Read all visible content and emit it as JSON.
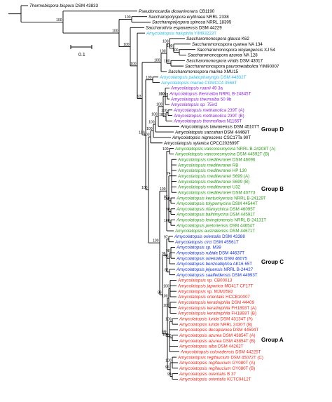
{
  "tree": {
    "colors": {
      "black": "#000000",
      "cyan": "#31b7e5",
      "purple": "#8a1fd0",
      "green": "#2c9a1a",
      "blue": "#1630c9",
      "red": "#e8281f"
    },
    "scale_bar": {
      "label": "0.1"
    },
    "groups": [
      {
        "id": "D",
        "label": "Group D"
      },
      {
        "id": "B",
        "label": "Group B"
      },
      {
        "id": "C",
        "label": "Group C"
      },
      {
        "id": "A",
        "label": "Group A"
      }
    ],
    "leaves": [
      {
        "genus": "Thermobispora bispora",
        "strain": "DSM 43833",
        "color": "black"
      },
      {
        "genus": "Pseudonocardia dioxanivorans",
        "strain": "CB1190",
        "color": "black"
      },
      {
        "genus": "Saccharopolyspora erythraea",
        "strain": "NRRL 2338",
        "color": "black"
      },
      {
        "genus": "Saccharopolyspora spinosa",
        "strain": "NRRL 18395",
        "color": "black"
      },
      {
        "genus": "Saccharothrix espanaensis",
        "strain": "DSM 44229",
        "color": "black"
      },
      {
        "genus": "Amycolatopsis halophila",
        "strain": "YIM93223T",
        "color": "cyan"
      },
      {
        "genus": "Saccharomonospora glauca",
        "strain": "K62",
        "color": "black"
      },
      {
        "genus": "Saccharomonospora cyanea",
        "strain": "NA 134",
        "color": "black"
      },
      {
        "genus": "Saccharomonospora xinjiangensis",
        "strain": "XJ 54",
        "color": "black"
      },
      {
        "genus": "Saccharomonospora azurea",
        "strain": "NA 128",
        "color": "black"
      },
      {
        "genus": "Saccharomonospora viridis",
        "strain": "DSM 43017",
        "color": "black"
      },
      {
        "genus": "Saccharomonospora paurometabolica",
        "strain": "YIM90007",
        "color": "black"
      },
      {
        "genus": "Saccharomonospora marina",
        "strain": "XMU15",
        "color": "black"
      },
      {
        "genus": "Amycolatopsis palatopharyngis",
        "strain": "DSM 44832T",
        "color": "cyan"
      },
      {
        "genus": "Amycolatopsis mairae",
        "strain": "CGMCC4 3568T",
        "color": "cyan"
      },
      {
        "genus": "Amycolatopsis ruanii",
        "strain": "49 3a",
        "color": "purple"
      },
      {
        "genus": "Amycolatopsis thermalba",
        "strain": "NRRL B-24845T",
        "color": "purple"
      },
      {
        "genus": "Amycolatopsis thermalba",
        "strain": "50 9b",
        "color": "purple"
      },
      {
        "genus": "Amycolatopsis sp.",
        "strain": "75iv2",
        "color": "purple"
      },
      {
        "genus": "Amycolatopsis methanolica",
        "strain": "239T (A)",
        "color": "purple"
      },
      {
        "genus": "Amycolatopsis methanolica",
        "strain": "239T (B)",
        "color": "purple"
      },
      {
        "genus": "Amycolatopsis thermoflava",
        "strain": "N1165T",
        "color": "purple"
      },
      {
        "genus": "Amycolatopsis taiwanensis",
        "strain": "DSM 45107T",
        "color": "black"
      },
      {
        "genus": "Amycolatopsis saccahari",
        "strain": "DSM 44468T",
        "color": "black"
      },
      {
        "genus": "Amycolatopsis nigrescens",
        "strain": "CSC17Ta 90T",
        "color": "black"
      },
      {
        "genus": "Amycolatopsis xylanica",
        "strain": "CPCC202699T",
        "color": "black"
      },
      {
        "genus": "Amycolatopsis vancoresmycina",
        "strain": "NRRL B-24208T (A)",
        "color": "green"
      },
      {
        "genus": "Amycolatopsis vancoresmycina",
        "strain": "DSM 44592T (B)",
        "color": "green"
      },
      {
        "genus": "Amycolatopsis mediterranei",
        "strain": "DSM 46096",
        "color": "green"
      },
      {
        "genus": "Amycolatopsis mediterranei",
        "strain": "RB",
        "color": "green"
      },
      {
        "genus": "Amycolatopsis mediterranei",
        "strain": "HP 130",
        "color": "green"
      },
      {
        "genus": "Amycolatopsis mediterranei",
        "strain": "S699 (A)",
        "color": "green"
      },
      {
        "genus": "Amycolatopsis mediterranei",
        "strain": "S699 (B)",
        "color": "green"
      },
      {
        "genus": "Amycolatopsis mediterranei",
        "strain": "U32",
        "color": "green"
      },
      {
        "genus": "Amycolatopsis mediterranei",
        "strain": "DSM 40773",
        "color": "green"
      },
      {
        "genus": "Amycolatopsis kentuckyensis",
        "strain": "NRRL B-24129T",
        "color": "green"
      },
      {
        "genus": "Amycolatopsis tolypomycina",
        "strain": "DSM 44544T",
        "color": "green"
      },
      {
        "genus": "Amycolatopsis rifamycinica",
        "strain": "DSM 46095T",
        "color": "green"
      },
      {
        "genus": "Amycolatopsis balhimycina",
        "strain": "DSM 44591T",
        "color": "green"
      },
      {
        "genus": "Amycolatopsis lexingtonensis",
        "strain": "NRRL B-24131T",
        "color": "green"
      },
      {
        "genus": "Amycolatopsis pretoriensis",
        "strain": "DSM 44654T",
        "color": "green"
      },
      {
        "genus": "Amycolatopsis australiensis",
        "strain": "DSM 44671T",
        "color": "green"
      },
      {
        "genus": "Amycolatopsis orientalis",
        "strain": "DSM 43388",
        "color": "blue"
      },
      {
        "genus": "Amycolatopsis circi",
        "strain": "DSM 45561T",
        "color": "blue"
      },
      {
        "genus": "Amycolatopsis sp.",
        "strain": "M39",
        "color": "blue"
      },
      {
        "genus": "Amycolatopsis rubida",
        "strain": "DSM 44637T",
        "color": "blue"
      },
      {
        "genus": "Amycolatopsis orientalis",
        "strain": "DSM 46075",
        "color": "blue"
      },
      {
        "genus": "Amycolatopsis benzoatilytica",
        "strain": "AK16 65T",
        "color": "blue"
      },
      {
        "genus": "Amycolatopsis jejuensis",
        "strain": "NRRL B-24427",
        "color": "blue"
      },
      {
        "genus": "Amycolatopsis saalfeldensis",
        "strain": "DSM 44993T",
        "color": "blue"
      },
      {
        "genus": "Amycolatopsis",
        "strain": "sp. CB00013",
        "color": "red"
      },
      {
        "genus": "Amycolatopsis japonica",
        "strain": "MG417 CF17T",
        "color": "red"
      },
      {
        "genus": "Amycolatopsis",
        "strain": "sp. MJM2582",
        "color": "red"
      },
      {
        "genus": "Amycolatopsis orientalis",
        "strain": "HCCB10007",
        "color": "red"
      },
      {
        "genus": "Amycolatopsis keratiniphila",
        "strain": "DSM 44409",
        "color": "red"
      },
      {
        "genus": "Amycolatopsis keratiniphila",
        "strain": "FH1893T (A)",
        "color": "red"
      },
      {
        "genus": "Amycolatopsis keratiniphila",
        "strain": "FH1893T (B)",
        "color": "red"
      },
      {
        "genus": "Amycolatopsis lurida",
        "strain": "DSM 43134T (A)",
        "color": "red"
      },
      {
        "genus": "Amycolatopsis lurida",
        "strain": "NRRL 2430T (B)",
        "color": "red"
      },
      {
        "genus": "Amycolatopsis decaplanina",
        "strain": "DSM 44594T",
        "color": "red"
      },
      {
        "genus": "Amycolatopsis azurea",
        "strain": "DSM 43854T (A)",
        "color": "red"
      },
      {
        "genus": "Amycolatopsis azurea",
        "strain": "DSM 43854T (B)",
        "color": "red"
      },
      {
        "genus": "Amycolatopsis alba",
        "strain": "DSM 44262T",
        "color": "red"
      },
      {
        "genus": "Amycolatopsis coloradensis",
        "strain": "DSM 44225T",
        "color": "red"
      },
      {
        "genus": "Amycolatopsis regifaucium",
        "strain": "DSM 45072T (C)",
        "color": "red"
      },
      {
        "genus": "Amycolatopsis regifaucium",
        "strain": "GY080T (A)",
        "color": "red"
      },
      {
        "genus": "Amycolatopsis regifaucium",
        "strain": "GY080T (B)",
        "color": "red"
      },
      {
        "genus": "Amycolatopsis orientalis",
        "strain": "B 37",
        "color": "red"
      },
      {
        "genus": "Amycolatopsis orientalis",
        "strain": "KCTC9412T",
        "color": "red"
      }
    ],
    "bootstrap_labels": [
      "100",
      "100",
      "100",
      "100",
      "100",
      "100",
      "100",
      "100",
      "100",
      "100",
      "100",
      "100",
      "100",
      "100",
      "100",
      "100",
      "100",
      "100",
      "100",
      "100",
      "100",
      "100",
      "100",
      "100",
      "99",
      "96",
      "99",
      "97",
      "98",
      "95",
      "82",
      "96",
      "99",
      "100",
      "74",
      "100",
      "98",
      "100",
      "97",
      "100",
      "100",
      "100",
      "100",
      "93",
      "100",
      "100",
      "100",
      "100",
      "100",
      "96",
      "100",
      "85",
      "100",
      "100",
      "99",
      "100",
      "100",
      "100",
      "100",
      "100",
      "100",
      "96",
      "100"
    ]
  }
}
